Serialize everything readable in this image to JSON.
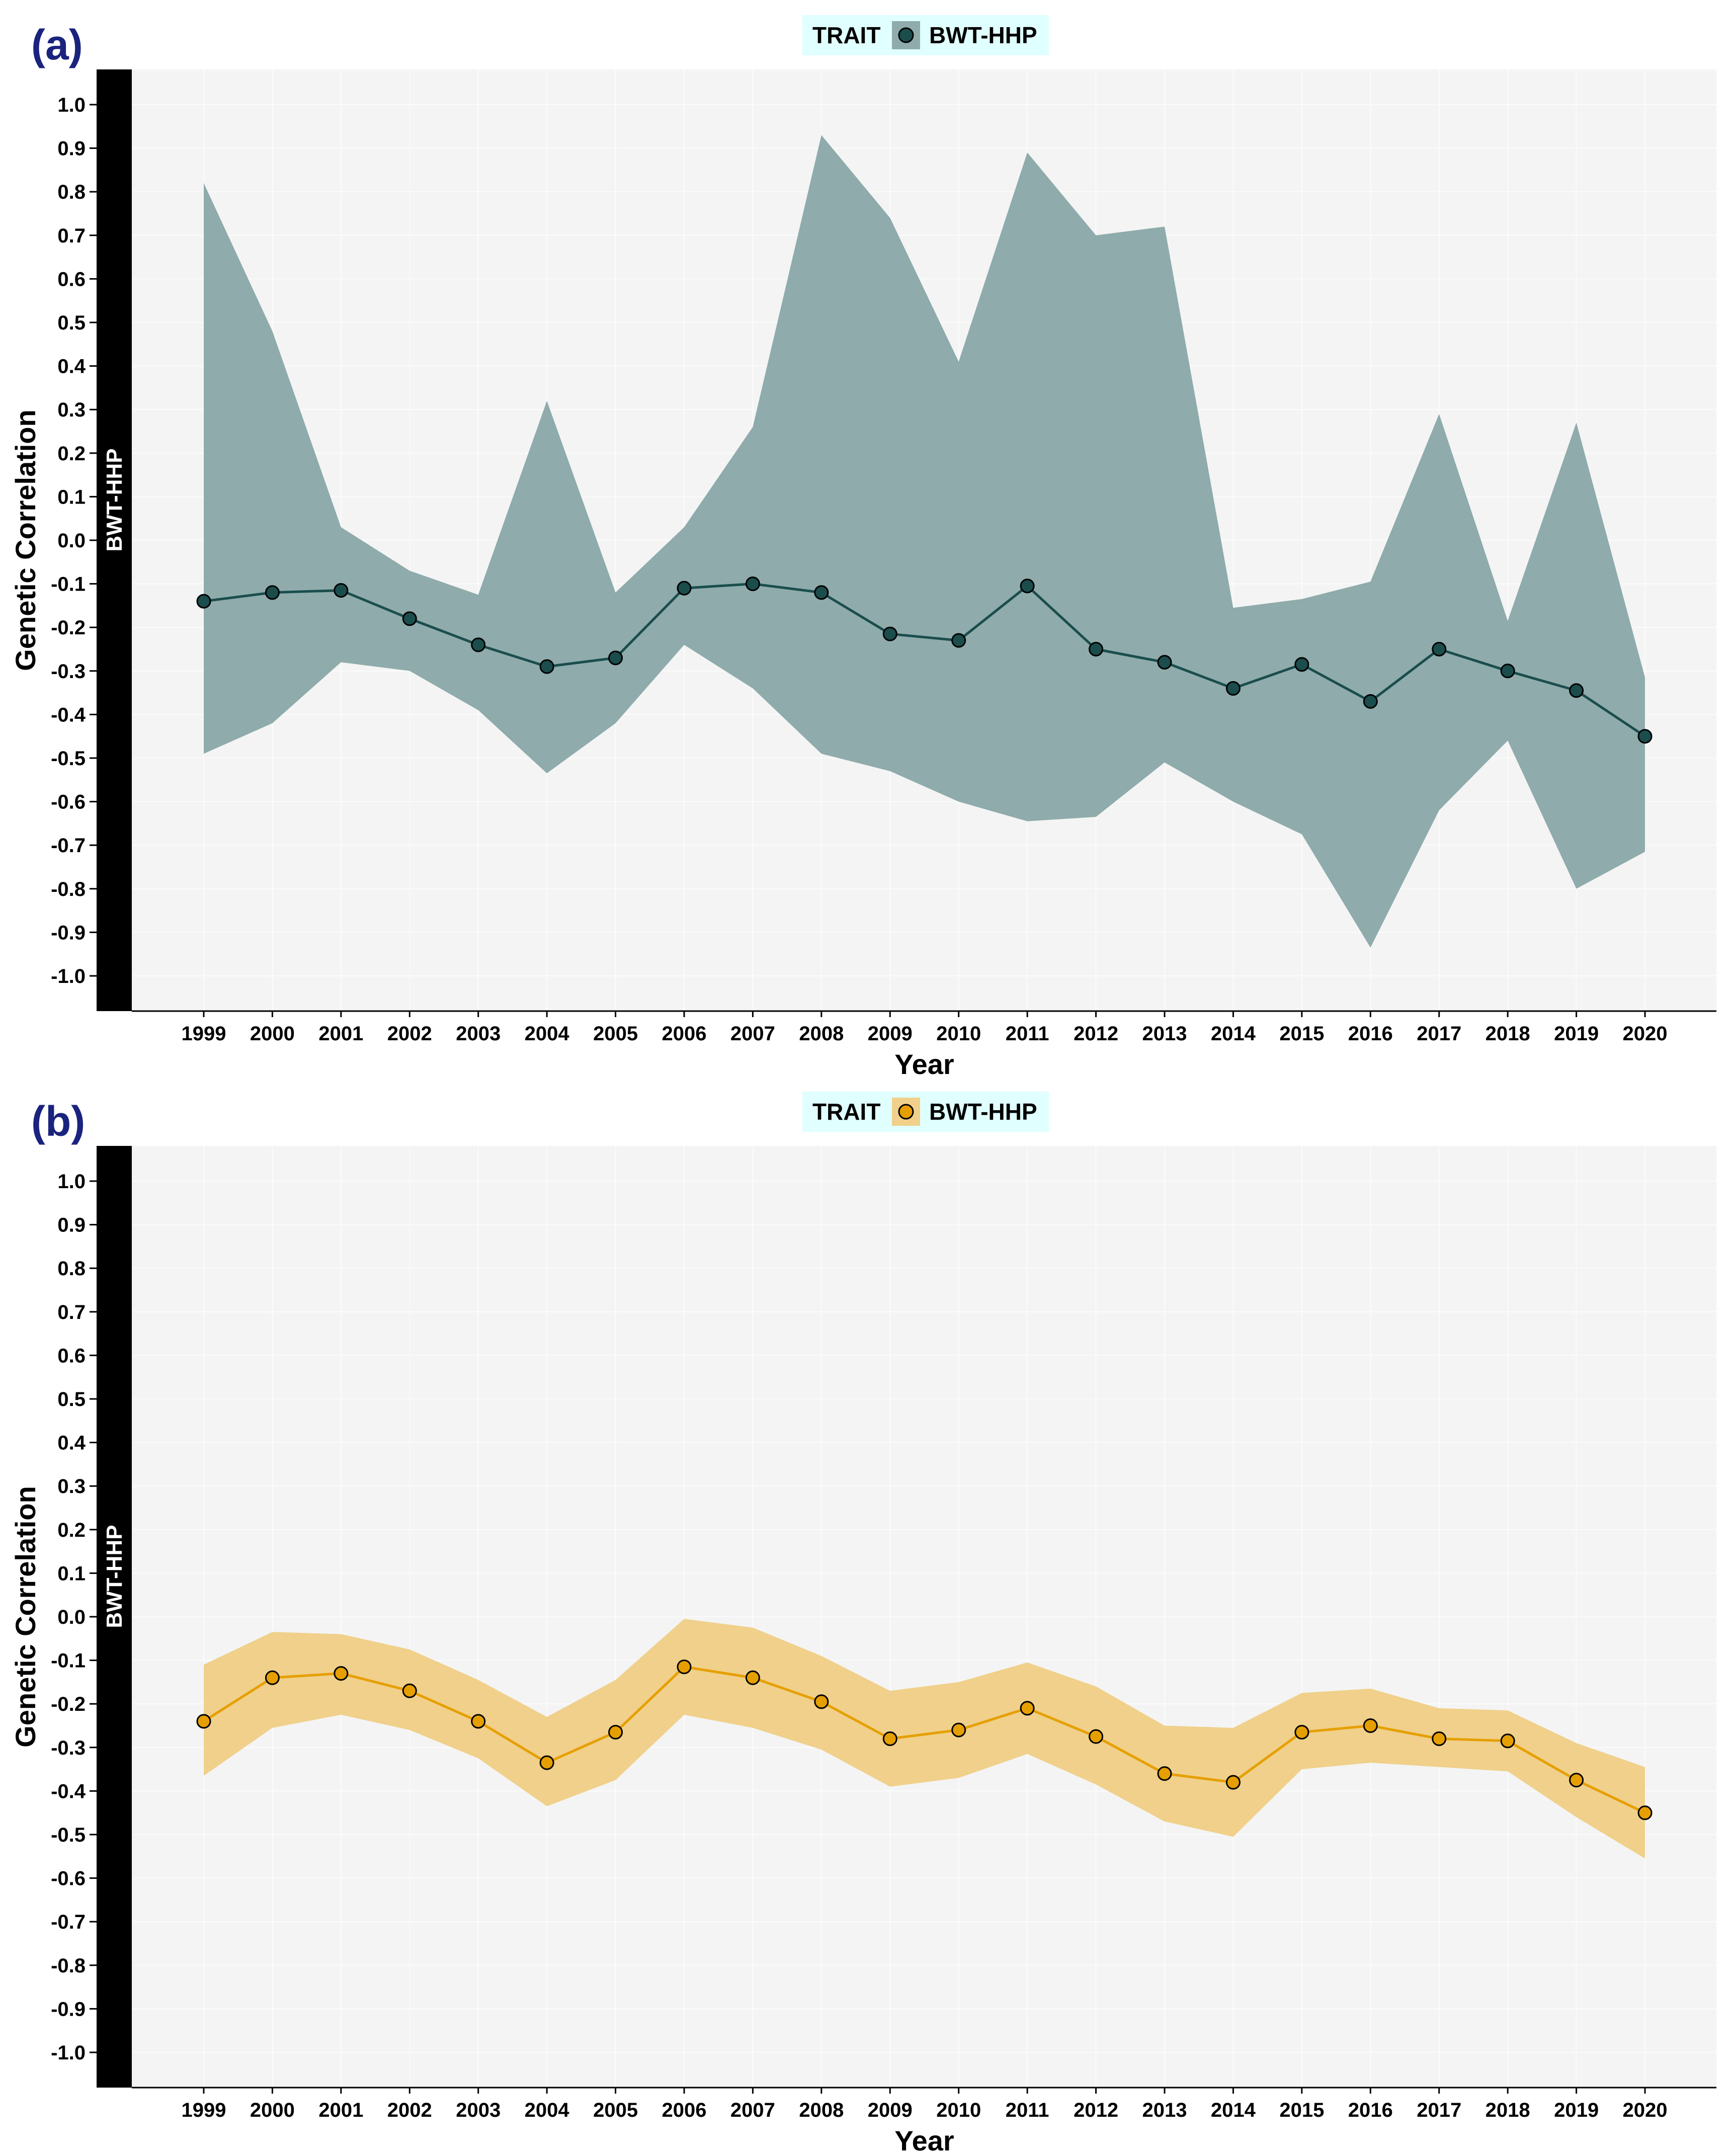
{
  "chart_data": [
    {
      "panel": "(a)",
      "type": "line",
      "legend_title": "TRAIT",
      "legend_label": "BWT-HHP",
      "strip_label": "BWT-HHP",
      "xlabel": "Year",
      "ylabel": "Genetic Correlation",
      "ylim": [
        -1.0,
        1.0
      ],
      "y_ticks": [
        "1.0",
        "0.9",
        "0.8",
        "0.7",
        "0.6",
        "0.5",
        "0.4",
        "0.3",
        "0.2",
        "0.1",
        "0.0",
        "-0.1",
        "-0.2",
        "-0.3",
        "-0.4",
        "-0.5",
        "-0.6",
        "-0.7",
        "-0.8",
        "-0.9",
        "-1.0"
      ],
      "x": [
        "1999",
        "2000",
        "2001",
        "2002",
        "2003",
        "2004",
        "2005",
        "2006",
        "2007",
        "2008",
        "2009",
        "2010",
        "2011",
        "2012",
        "2013",
        "2014",
        "2015",
        "2016",
        "2017",
        "2018",
        "2019",
        "2020"
      ],
      "line_color": "#1b4d4d",
      "band_color": "#8fabab",
      "series": [
        {
          "name": "estimate",
          "values": [
            -0.14,
            -0.12,
            -0.115,
            -0.18,
            -0.24,
            -0.29,
            -0.27,
            -0.11,
            -0.1,
            -0.12,
            -0.215,
            -0.23,
            -0.105,
            -0.25,
            -0.28,
            -0.34,
            -0.285,
            -0.37,
            -0.25,
            -0.3,
            -0.345,
            -0.45
          ]
        },
        {
          "name": "upper",
          "values": [
            0.82,
            0.48,
            0.03,
            -0.07,
            -0.125,
            0.32,
            -0.12,
            0.03,
            0.26,
            0.93,
            0.74,
            0.41,
            0.89,
            0.7,
            0.72,
            -0.155,
            -0.135,
            -0.095,
            0.29,
            -0.185,
            0.27,
            -0.315
          ]
        },
        {
          "name": "lower",
          "values": [
            -0.49,
            -0.42,
            -0.28,
            -0.3,
            -0.39,
            -0.535,
            -0.42,
            -0.24,
            -0.34,
            -0.49,
            -0.53,
            -0.6,
            -0.645,
            -0.635,
            -0.51,
            -0.6,
            -0.675,
            -0.935,
            -0.62,
            -0.46,
            -0.8,
            -0.715
          ]
        }
      ]
    },
    {
      "panel": "(b)",
      "type": "line",
      "legend_title": "TRAIT",
      "legend_label": "BWT-HHP",
      "strip_label": "BWT-HHP",
      "xlabel": "Year",
      "ylabel": "Genetic Correlation",
      "ylim": [
        -1.0,
        1.0
      ],
      "y_ticks": [
        "1.0",
        "0.9",
        "0.8",
        "0.7",
        "0.6",
        "0.5",
        "0.4",
        "0.3",
        "0.2",
        "0.1",
        "0.0",
        "-0.1",
        "-0.2",
        "-0.3",
        "-0.4",
        "-0.5",
        "-0.6",
        "-0.7",
        "-0.8",
        "-0.9",
        "-1.0"
      ],
      "x": [
        "1999",
        "2000",
        "2001",
        "2002",
        "2003",
        "2004",
        "2005",
        "2006",
        "2007",
        "2008",
        "2009",
        "2010",
        "2011",
        "2012",
        "2013",
        "2014",
        "2015",
        "2016",
        "2017",
        "2018",
        "2019",
        "2020"
      ],
      "line_color": "#e69f00",
      "band_color": "#f0d08a",
      "series": [
        {
          "name": "estimate",
          "values": [
            -0.24,
            -0.14,
            -0.13,
            -0.17,
            -0.24,
            -0.335,
            -0.265,
            -0.115,
            -0.14,
            -0.195,
            -0.28,
            -0.26,
            -0.21,
            -0.275,
            -0.36,
            -0.38,
            -0.265,
            -0.25,
            -0.28,
            -0.285,
            -0.375,
            -0.45
          ]
        },
        {
          "name": "upper",
          "values": [
            -0.11,
            -0.035,
            -0.04,
            -0.075,
            -0.145,
            -0.23,
            -0.145,
            -0.005,
            -0.025,
            -0.09,
            -0.17,
            -0.15,
            -0.105,
            -0.16,
            -0.25,
            -0.255,
            -0.175,
            -0.165,
            -0.21,
            -0.215,
            -0.29,
            -0.345
          ]
        },
        {
          "name": "lower",
          "values": [
            -0.365,
            -0.255,
            -0.225,
            -0.26,
            -0.325,
            -0.435,
            -0.375,
            -0.225,
            -0.255,
            -0.305,
            -0.39,
            -0.37,
            -0.315,
            -0.385,
            -0.47,
            -0.505,
            -0.35,
            -0.335,
            -0.345,
            -0.355,
            -0.46,
            -0.555
          ]
        }
      ]
    }
  ]
}
